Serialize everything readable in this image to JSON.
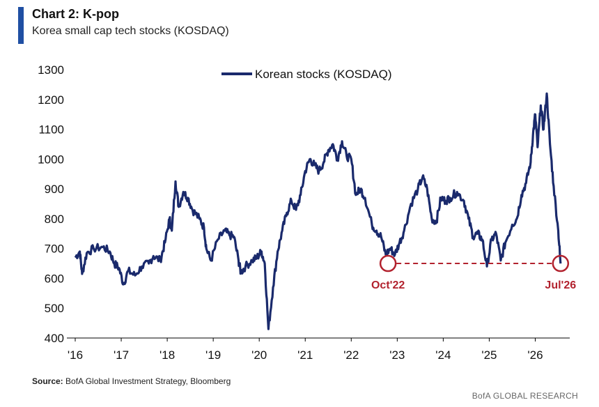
{
  "header": {
    "title": "Chart 2: K-pop",
    "subtitle": "Korea small cap tech stocks (KOSDAQ)"
  },
  "footer": {
    "source_label": "Source:",
    "source_text": " BofA Global Investment Strategy, Bloomberg",
    "brand": "BofA GLOBAL RESEARCH"
  },
  "colors": {
    "series": "#1a2a6c",
    "annotation": "#b2222e",
    "accent": "#1f4fa3"
  },
  "chart_data": {
    "type": "line",
    "legend": {
      "label": "Korean stocks (KOSDAQ)",
      "position": "top-center"
    },
    "ylim": [
      400,
      1300
    ],
    "yticks": [
      400,
      500,
      600,
      700,
      800,
      900,
      1000,
      1100,
      1200,
      1300
    ],
    "xlim": [
      2016.0,
      2026.75
    ],
    "xticks": [
      {
        "label": "'16",
        "value": 2016
      },
      {
        "label": "'17",
        "value": 2017
      },
      {
        "label": "'18",
        "value": 2018
      },
      {
        "label": "'19",
        "value": 2019
      },
      {
        "label": "'20",
        "value": 2020
      },
      {
        "label": "'21",
        "value": 2021
      },
      {
        "label": "'22",
        "value": 2022
      },
      {
        "label": "'23",
        "value": 2023
      },
      {
        "label": "'24",
        "value": 2024
      },
      {
        "label": "'25",
        "value": 2025
      },
      {
        "label": "'26",
        "value": 2026
      }
    ],
    "grid": false,
    "series": [
      {
        "name": "Korean stocks (KOSDAQ)",
        "points": [
          [
            2016.0,
            670
          ],
          [
            2016.1,
            690
          ],
          [
            2016.15,
            615
          ],
          [
            2016.25,
            685
          ],
          [
            2016.4,
            700
          ],
          [
            2016.6,
            705
          ],
          [
            2016.75,
            690
          ],
          [
            2016.85,
            650
          ],
          [
            2016.95,
            635
          ],
          [
            2017.05,
            580
          ],
          [
            2017.15,
            625
          ],
          [
            2017.3,
            610
          ],
          [
            2017.45,
            640
          ],
          [
            2017.6,
            650
          ],
          [
            2017.7,
            675
          ],
          [
            2017.85,
            660
          ],
          [
            2017.95,
            720
          ],
          [
            2018.05,
            800
          ],
          [
            2018.1,
            760
          ],
          [
            2018.18,
            925
          ],
          [
            2018.25,
            840
          ],
          [
            2018.35,
            890
          ],
          [
            2018.45,
            870
          ],
          [
            2018.55,
            830
          ],
          [
            2018.7,
            800
          ],
          [
            2018.8,
            770
          ],
          [
            2018.85,
            700
          ],
          [
            2018.95,
            660
          ],
          [
            2019.1,
            730
          ],
          [
            2019.25,
            760
          ],
          [
            2019.35,
            745
          ],
          [
            2019.45,
            740
          ],
          [
            2019.55,
            660
          ],
          [
            2019.6,
            620
          ],
          [
            2019.7,
            640
          ],
          [
            2019.85,
            660
          ],
          [
            2019.95,
            670
          ],
          [
            2020.05,
            690
          ],
          [
            2020.12,
            650
          ],
          [
            2020.2,
            430
          ],
          [
            2020.3,
            570
          ],
          [
            2020.4,
            690
          ],
          [
            2020.5,
            760
          ],
          [
            2020.6,
            820
          ],
          [
            2020.7,
            860
          ],
          [
            2020.8,
            830
          ],
          [
            2020.9,
            880
          ],
          [
            2021.0,
            960
          ],
          [
            2021.1,
            1000
          ],
          [
            2021.2,
            980
          ],
          [
            2021.3,
            960
          ],
          [
            2021.4,
            990
          ],
          [
            2021.5,
            1030
          ],
          [
            2021.6,
            1050
          ],
          [
            2021.7,
            1000
          ],
          [
            2021.8,
            1060
          ],
          [
            2021.9,
            1010
          ],
          [
            2022.0,
            1000
          ],
          [
            2022.1,
            880
          ],
          [
            2022.2,
            900
          ],
          [
            2022.3,
            870
          ],
          [
            2022.45,
            780
          ],
          [
            2022.55,
            760
          ],
          [
            2022.65,
            740
          ],
          [
            2022.75,
            680
          ],
          [
            2022.85,
            700
          ],
          [
            2022.95,
            680
          ],
          [
            2023.05,
            720
          ],
          [
            2023.15,
            760
          ],
          [
            2023.3,
            850
          ],
          [
            2023.45,
            900
          ],
          [
            2023.55,
            940
          ],
          [
            2023.65,
            900
          ],
          [
            2023.75,
            800
          ],
          [
            2023.85,
            790
          ],
          [
            2023.95,
            870
          ],
          [
            2024.05,
            860
          ],
          [
            2024.15,
            870
          ],
          [
            2024.3,
            890
          ],
          [
            2024.45,
            860
          ],
          [
            2024.55,
            800
          ],
          [
            2024.65,
            740
          ],
          [
            2024.75,
            750
          ],
          [
            2024.85,
            730
          ],
          [
            2024.95,
            640
          ],
          [
            2025.05,
            730
          ],
          [
            2025.15,
            750
          ],
          [
            2025.25,
            660
          ],
          [
            2025.35,
            720
          ],
          [
            2025.5,
            780
          ],
          [
            2025.6,
            800
          ],
          [
            2025.7,
            880
          ],
          [
            2025.8,
            920
          ],
          [
            2025.9,
            990
          ],
          [
            2025.95,
            1080
          ],
          [
            2026.0,
            1150
          ],
          [
            2026.05,
            1040
          ],
          [
            2026.12,
            1180
          ],
          [
            2026.18,
            1100
          ],
          [
            2026.25,
            1220
          ],
          [
            2026.32,
            1050
          ],
          [
            2026.4,
            910
          ],
          [
            2026.5,
            760
          ],
          [
            2026.55,
            650
          ]
        ]
      }
    ],
    "annotations": [
      {
        "label": "Oct'22",
        "x": 2022.8,
        "y": 650
      },
      {
        "label": "Jul'26",
        "x": 2026.55,
        "y": 650
      }
    ]
  }
}
